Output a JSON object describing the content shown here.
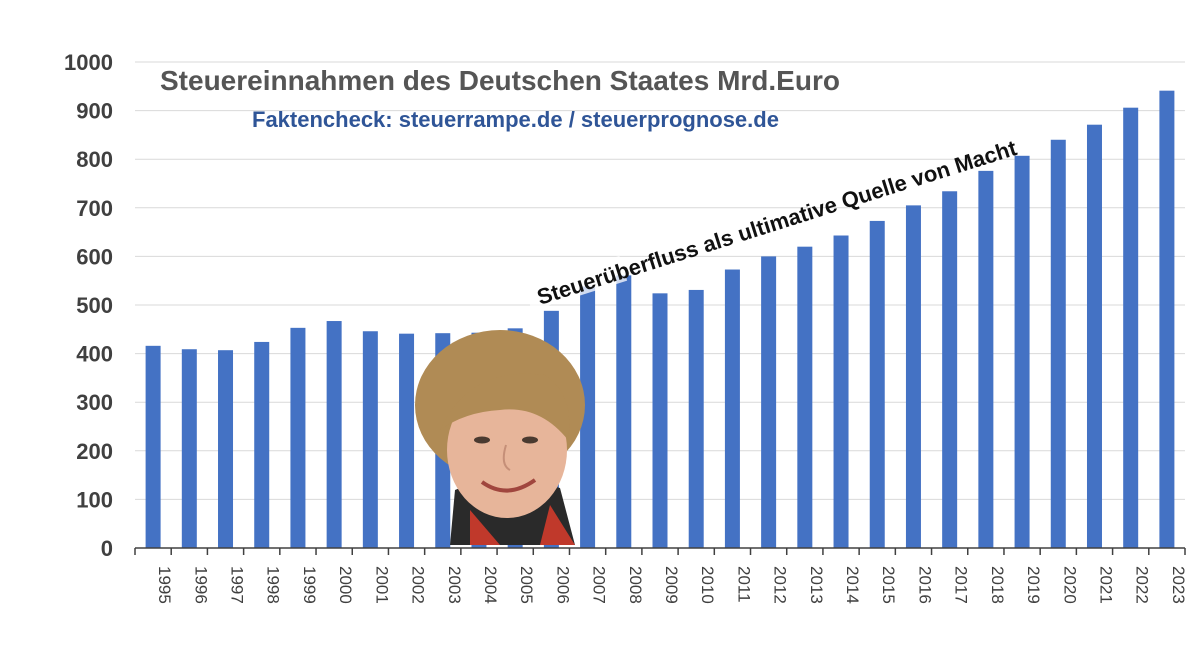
{
  "chart_data": {
    "type": "bar",
    "title": "Steuereinnahmen des Deutschen Staates Mrd.Euro",
    "subtitle": "Faktencheck: steuerrampe.de / steuerprognose.de",
    "annotation": "Steuerüberfluss als ultimative Quelle von Macht",
    "xlabel": "",
    "ylabel": "",
    "ylim": [
      0,
      1000
    ],
    "yticks": [
      0,
      100,
      200,
      300,
      400,
      500,
      600,
      700,
      800,
      900,
      1000
    ],
    "grid": true,
    "legend": "none",
    "categories": [
      "1995",
      "1996",
      "1997",
      "1998",
      "1999",
      "2000",
      "2001",
      "2002",
      "2003",
      "2004",
      "2005",
      "2006",
      "2007",
      "2008",
      "2009",
      "2010",
      "2011",
      "2012",
      "2013",
      "2014",
      "2015",
      "2016",
      "2017",
      "2018",
      "2019",
      "2020",
      "2021",
      "2022",
      "2023"
    ],
    "values": [
      416,
      409,
      407,
      424,
      453,
      467,
      446,
      441,
      442,
      443,
      452,
      488,
      538,
      561,
      524,
      531,
      573,
      600,
      620,
      643,
      673,
      705,
      734,
      776,
      807,
      840,
      871,
      906,
      941
    ],
    "colors": {
      "bar": "#4472C4",
      "subtitle": "#2F5597",
      "grid": "#D9D9D9",
      "axis": "#404040"
    }
  },
  "portrait": {
    "icon": "person-portrait-photo"
  }
}
